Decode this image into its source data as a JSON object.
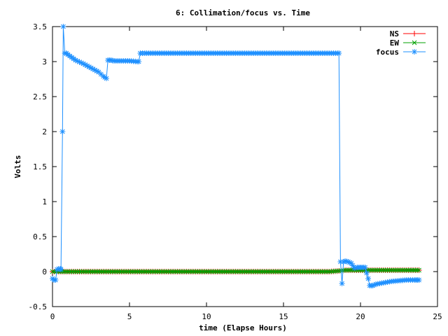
{
  "chart_data": {
    "type": "line",
    "title": "6: Collimation/focus vs. Time",
    "xlabel": "time (Elapse Hours)",
    "ylabel": "Volts",
    "xlim": [
      0,
      25
    ],
    "ylim": [
      -0.5,
      3.5
    ],
    "x_ticks": [
      "0",
      "5",
      "10",
      "15",
      "20",
      "25"
    ],
    "y_ticks": [
      "-0.5",
      "0",
      "0.5",
      "1",
      "1.5",
      "2",
      "2.5",
      "3",
      "3.5"
    ],
    "grid": false,
    "legend_position": "top-right",
    "series": [
      {
        "name": "NS",
        "color": "#ff0000",
        "marker": "plus",
        "x": [
          0,
          0.5,
          1,
          2,
          4,
          6,
          8,
          10,
          12,
          14,
          16,
          18,
          18.6,
          19,
          20,
          21,
          22,
          23,
          23.8
        ],
        "y": [
          0.0,
          0.0,
          0.0,
          0.0,
          0.0,
          0.0,
          0.0,
          0.0,
          0.0,
          0.0,
          0.0,
          0.0,
          0.01,
          0.02,
          0.02,
          0.02,
          0.02,
          0.02,
          0.02
        ]
      },
      {
        "name": "EW",
        "color": "#00a000",
        "marker": "cross",
        "x": [
          0,
          0.5,
          1,
          2,
          4,
          6,
          8,
          10,
          12,
          14,
          16,
          18,
          18.6,
          19,
          20,
          21,
          22,
          23,
          23.8
        ],
        "y": [
          0.0,
          0.0,
          0.0,
          0.0,
          0.0,
          0.0,
          0.0,
          0.0,
          0.0,
          0.0,
          0.0,
          0.0,
          0.01,
          0.02,
          0.02,
          0.02,
          0.02,
          0.02,
          0.02
        ]
      },
      {
        "name": "focus",
        "color": "#1e90ff",
        "marker": "star",
        "x": [
          0,
          0.1,
          0.2,
          0.3,
          0.4,
          0.5,
          0.55,
          0.65,
          0.7,
          0.8,
          0.9,
          1.0,
          1.5,
          2.0,
          2.5,
          3.0,
          3.3,
          3.5,
          3.6,
          3.8,
          4.0,
          4.5,
          5.0,
          5.5,
          5.6,
          5.7,
          6,
          8,
          10,
          12,
          14,
          16,
          18,
          18.5,
          18.6,
          18.7,
          18.8,
          18.9,
          19.0,
          19.2,
          19.4,
          19.6,
          19.8,
          20.0,
          20.3,
          20.5,
          20.6,
          20.8,
          21.0,
          21.5,
          22.0,
          22.5,
          23.0,
          23.5,
          23.8
        ],
        "y": [
          -0.1,
          -0.12,
          -0.12,
          0.03,
          0.04,
          0.04,
          0.03,
          2.0,
          3.5,
          3.12,
          3.12,
          3.1,
          3.02,
          2.97,
          2.91,
          2.85,
          2.79,
          2.76,
          3.02,
          3.02,
          3.01,
          3.01,
          3.01,
          3.0,
          3.0,
          3.12,
          3.12,
          3.12,
          3.12,
          3.12,
          3.12,
          3.12,
          3.12,
          3.12,
          3.12,
          0.14,
          -0.17,
          0.14,
          0.15,
          0.14,
          0.12,
          0.05,
          0.06,
          0.06,
          0.06,
          -0.1,
          -0.2,
          -0.2,
          -0.18,
          -0.16,
          -0.14,
          -0.13,
          -0.12,
          -0.12,
          -0.12
        ]
      }
    ]
  }
}
